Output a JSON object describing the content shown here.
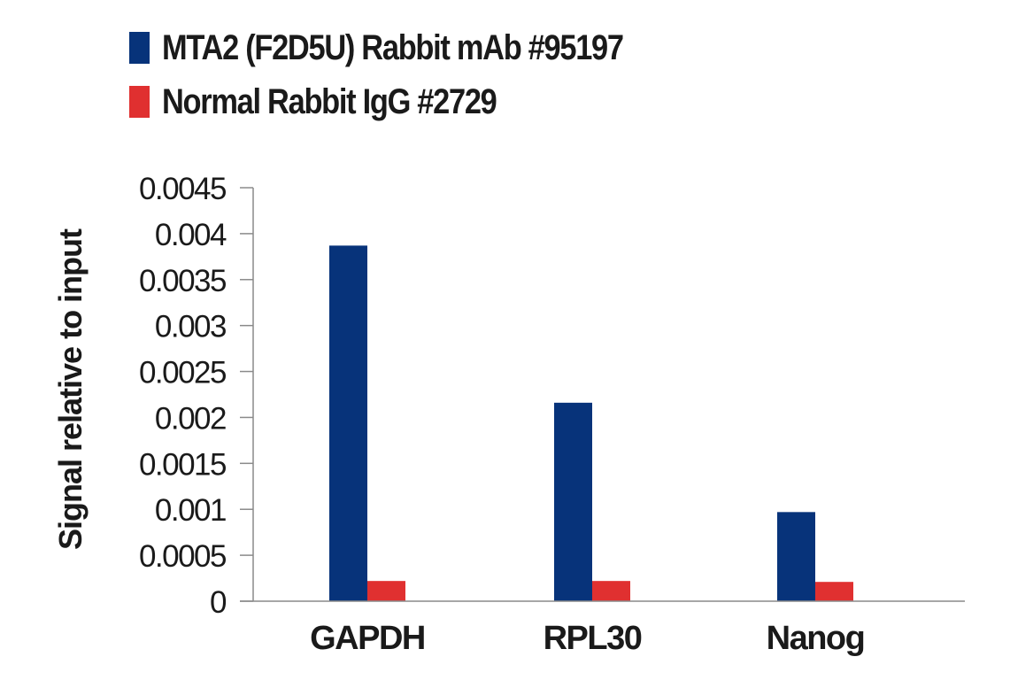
{
  "chart_data": {
    "type": "bar",
    "title": "",
    "xlabel": "",
    "ylabel": "Signal relative to input",
    "categories": [
      "GAPDH",
      "RPL30",
      "Nanog"
    ],
    "series": [
      {
        "name": "MTA2 (F2D5U) Rabbit mAb #95197",
        "color": "#07337a",
        "values": [
          0.00387,
          0.00216,
          0.00097
        ]
      },
      {
        "name": "Normal Rabbit IgG #2729",
        "color": "#e03030",
        "values": [
          0.00022,
          0.00022,
          0.00021
        ]
      }
    ],
    "ylim": [
      0,
      0.0045
    ],
    "yticks": [
      0,
      0.0005,
      0.001,
      0.0015,
      0.002,
      0.0025,
      0.003,
      0.0035,
      0.004,
      0.0045
    ],
    "ytick_labels": [
      "0",
      "0.0005",
      "0.001",
      "0.0015",
      "0.002",
      "0.0025",
      "0.003",
      "0.0035",
      "0.004",
      "0.0045"
    ],
    "grid": false,
    "legend_position": "top-left"
  },
  "legend": {
    "items": [
      {
        "label": "MTA2 (F2D5U) Rabbit mAb #95197",
        "color": "#07337a"
      },
      {
        "label": "Normal Rabbit IgG #2729",
        "color": "#e03030"
      }
    ]
  },
  "axis": {
    "ylabel": "Signal relative to input",
    "axis_color": "#8a8a8a"
  }
}
